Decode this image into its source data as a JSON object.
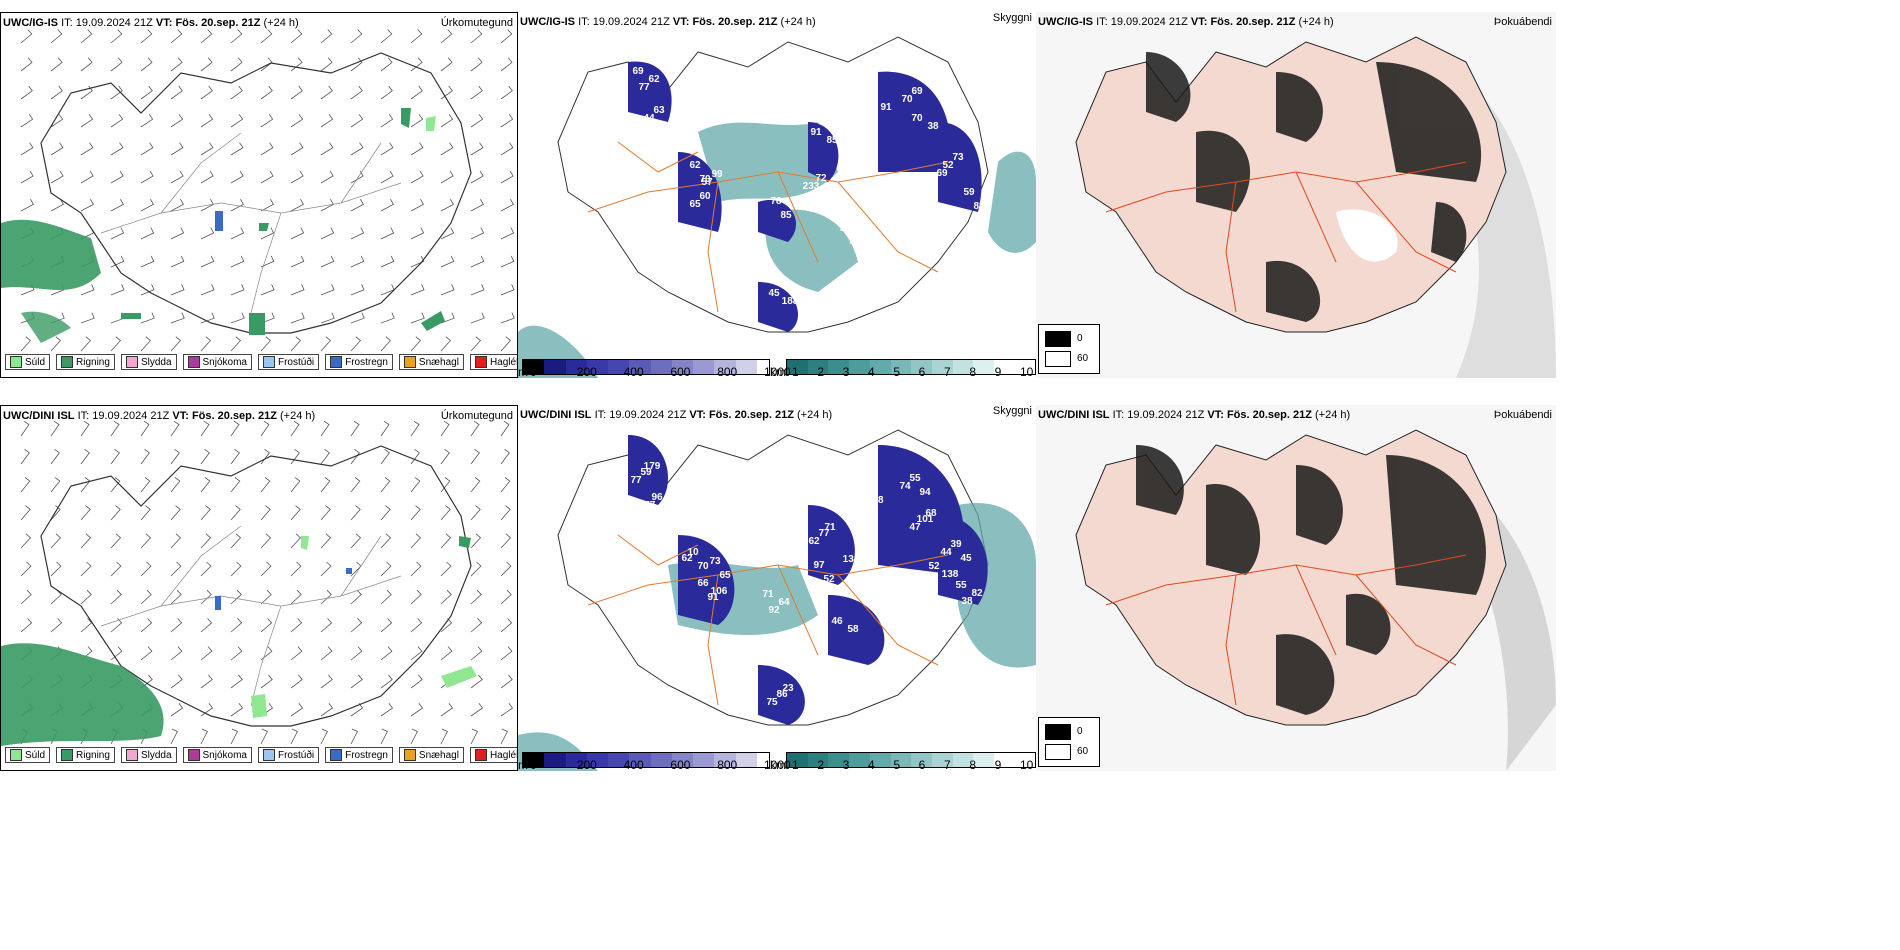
{
  "rows": [
    {
      "model": "UWC/IG-IS",
      "it_label": "IT:",
      "it_value": "19.09.2024 21Z",
      "vt_label": "VT:",
      "vt_value": "Fös. 20.sep. 21Z",
      "lead": "(+24 h)"
    },
    {
      "model": "UWC/DINI ISL",
      "it_label": "IT:",
      "it_value": "19.09.2024 21Z",
      "vt_label": "VT:",
      "vt_value": "Fös. 20.sep. 21Z",
      "lead": "(+24 h)"
    }
  ],
  "panel_tags": {
    "precip": "Úrkomutegund",
    "cloud": "Skyggni",
    "fog": "Þokuábendi"
  },
  "precip_legend": [
    {
      "label": "Súld",
      "color": "#8fe88f"
    },
    {
      "label": "Rigning",
      "color": "#3a9a64"
    },
    {
      "label": "Slydda",
      "color": "#f0a8d0"
    },
    {
      "label": "Snjókoma",
      "color": "#b03a9a"
    },
    {
      "label": "Frostúði",
      "color": "#9ec4f0"
    },
    {
      "label": "Frostregn",
      "color": "#3a6ac8"
    },
    {
      "label": "Snæhagl",
      "color": "#f0a020"
    },
    {
      "label": "Haglél",
      "color": "#e02020"
    }
  ],
  "cloud_bar": {
    "unit": "m",
    "ticks": [
      "0",
      "200",
      "400",
      "600",
      "800",
      "1000"
    ],
    "colors": [
      "#000000",
      "#1a1a80",
      "#2a2a9a",
      "#3838a8",
      "#4646b0",
      "#5a5ab8",
      "#6e6ec0",
      "#8484c8",
      "#9a9ad0",
      "#b4b4dc",
      "#d0d0e8"
    ]
  },
  "vis_bar": {
    "unit": "km",
    "ticks": [
      "1",
      "2",
      "3",
      "4",
      "5",
      "6",
      "7",
      "8",
      "9",
      "10"
    ],
    "colors": [
      "#1f7070",
      "#2e8080",
      "#3c8e8e",
      "#4f9c9c",
      "#64aaaa",
      "#7ab8b8",
      "#92c6c6",
      "#aad4d4",
      "#c2e2e2",
      "#ddf0f0",
      "#ffffff"
    ]
  },
  "fog_legend": {
    "items": [
      {
        "label": "0",
        "color": "#000000"
      },
      {
        "label": "60",
        "color": "#ffffff"
      }
    ]
  },
  "ceiling_labels": {
    "row1": [
      "69",
      "63",
      "70",
      "60",
      "85",
      "91",
      "69",
      "70",
      "73",
      "82",
      "45",
      "42",
      "48",
      "72",
      "101",
      "99",
      "74",
      "53",
      "62",
      "44",
      "62",
      "65",
      "78",
      "85",
      "70",
      "38",
      "52",
      "59",
      "188",
      "99",
      "91",
      "233",
      "69",
      "57",
      "32",
      "84",
      "77"
    ],
    "row2": [
      "59",
      "63",
      "62",
      "91",
      "71",
      "77",
      "94",
      "101",
      "45",
      "55",
      "86",
      "46",
      "78",
      "52",
      "52",
      "65",
      "52",
      "69",
      "77",
      "96",
      "70",
      "66",
      "64",
      "62",
      "55",
      "47",
      "39",
      "82",
      "75",
      "58",
      "43",
      "97",
      "138",
      "73",
      "73",
      "134",
      "179",
      "157",
      "10",
      "106",
      "92",
      "71",
      "74",
      "68",
      "44",
      "38",
      "23"
    ]
  }
}
